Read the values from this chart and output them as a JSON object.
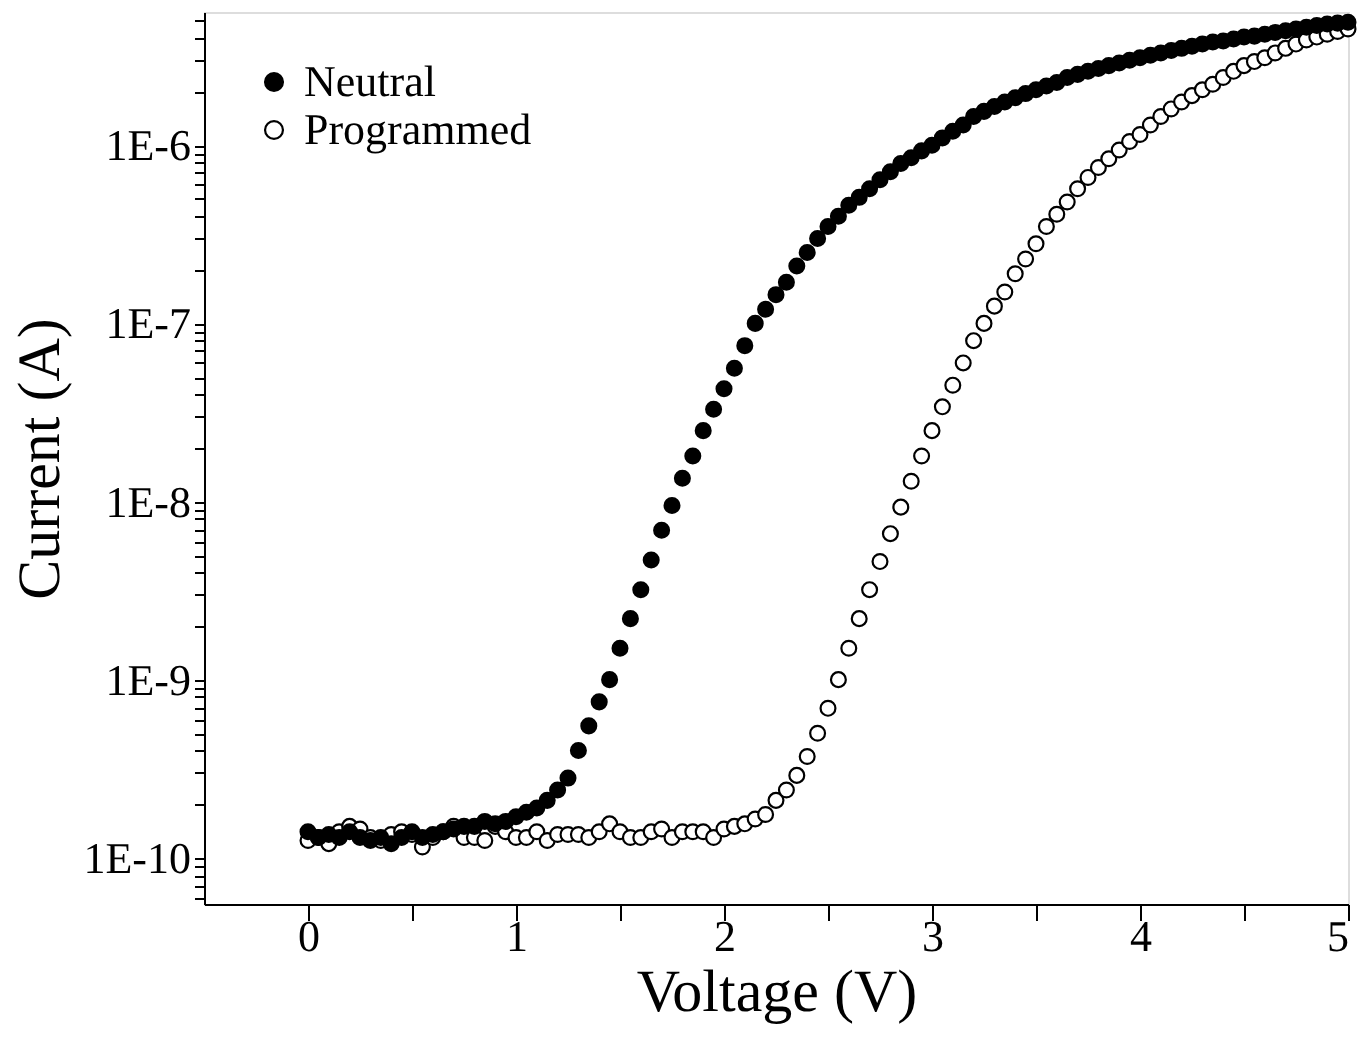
{
  "chart_data": {
    "type": "scatter",
    "xlabel": "Voltage (V)",
    "ylabel": "Current (A)",
    "log": "y",
    "grid": false,
    "legend": "top left",
    "marker": "circle",
    "xlim": [
      -0.5,
      5
    ],
    "xticks": [
      0,
      {
        "value": 0.5,
        "label": null
      },
      1,
      {
        "value": 1.5,
        "label": null
      },
      2,
      {
        "value": 2.5,
        "label": null
      },
      3,
      {
        "value": 3.5,
        "label": null
      },
      4,
      {
        "value": 4.5,
        "label": null
      },
      5
    ],
    "ylim": [
      5.5e-11,
      5.6e-06
    ],
    "yticks": [
      {
        "value": 6e-11,
        "label": null
      },
      {
        "value": 7e-11,
        "label": null
      },
      {
        "value": 8e-11,
        "label": null
      },
      {
        "value": 9e-11,
        "label": null
      },
      {
        "value": 1e-10,
        "label": "1E-10"
      },
      {
        "value": 2e-10,
        "label": null
      },
      {
        "value": 3e-10,
        "label": null
      },
      {
        "value": 4e-10,
        "label": null
      },
      {
        "value": 5e-10,
        "label": null
      },
      {
        "value": 6e-10,
        "label": null
      },
      {
        "value": 7e-10,
        "label": null
      },
      {
        "value": 8e-10,
        "label": null
      },
      {
        "value": 9e-10,
        "label": null
      },
      {
        "value": 1e-09,
        "label": "1E-9"
      },
      {
        "value": 2e-09,
        "label": null
      },
      {
        "value": 3e-09,
        "label": null
      },
      {
        "value": 4e-09,
        "label": null
      },
      {
        "value": 5e-09,
        "label": null
      },
      {
        "value": 6e-09,
        "label": null
      },
      {
        "value": 7e-09,
        "label": null
      },
      {
        "value": 8e-09,
        "label": null
      },
      {
        "value": 9e-09,
        "label": null
      },
      {
        "value": 1e-08,
        "label": "1E-8"
      },
      {
        "value": 2e-08,
        "label": null
      },
      {
        "value": 3e-08,
        "label": null
      },
      {
        "value": 4e-08,
        "label": null
      },
      {
        "value": 5e-08,
        "label": null
      },
      {
        "value": 6e-08,
        "label": null
      },
      {
        "value": 7e-08,
        "label": null
      },
      {
        "value": 8e-08,
        "label": null
      },
      {
        "value": 9e-08,
        "label": null
      },
      {
        "value": 1e-07,
        "label": "1E-7"
      },
      {
        "value": 2e-07,
        "label": null
      },
      {
        "value": 3e-07,
        "label": null
      },
      {
        "value": 4e-07,
        "label": null
      },
      {
        "value": 5e-07,
        "label": null
      },
      {
        "value": 6e-07,
        "label": null
      },
      {
        "value": 7e-07,
        "label": null
      },
      {
        "value": 8e-07,
        "label": null
      },
      {
        "value": 9e-07,
        "label": null
      },
      {
        "value": 1e-06,
        "label": "1E-6"
      },
      {
        "value": 2e-06,
        "label": null
      },
      {
        "value": 3e-06,
        "label": null
      },
      {
        "value": 4e-06,
        "label": null
      },
      {
        "value": 5e-06,
        "label": null
      }
    ],
    "x": [
      0,
      0.05,
      0.1,
      0.15,
      0.2,
      0.25,
      0.3,
      0.35,
      0.4,
      0.45,
      0.5,
      0.55,
      0.6,
      0.65,
      0.7,
      0.75,
      0.8,
      0.85,
      0.9,
      0.95,
      1,
      1.05,
      1.1,
      1.15,
      1.2,
      1.25,
      1.3,
      1.35,
      1.4,
      1.45,
      1.5,
      1.55,
      1.6,
      1.65,
      1.7,
      1.75,
      1.8,
      1.85,
      1.9,
      1.95,
      2,
      2.05,
      2.1,
      2.15,
      2.2,
      2.25,
      2.3,
      2.35,
      2.4,
      2.45,
      2.5,
      2.55,
      2.6,
      2.65,
      2.7,
      2.75,
      2.8,
      2.85,
      2.9,
      2.95,
      3,
      3.05,
      3.1,
      3.15,
      3.2,
      3.25,
      3.3,
      3.35,
      3.4,
      3.45,
      3.5,
      3.55,
      3.6,
      3.65,
      3.7,
      3.75,
      3.8,
      3.85,
      3.9,
      3.95,
      4,
      4.05,
      4.1,
      4.15,
      4.2,
      4.25,
      4.3,
      4.35,
      4.4,
      4.45,
      4.5,
      4.55,
      4.6,
      4.65,
      4.7,
      4.75,
      4.8,
      4.85,
      4.9,
      4.95,
      5
    ],
    "series": [
      {
        "name": "Neutral",
        "color": "#000000",
        "values": [
          1.4e-10,
          1.3e-10,
          1.35e-10,
          1.3e-10,
          1.4e-10,
          1.3e-10,
          1.25e-10,
          1.3e-10,
          1.2e-10,
          1.3e-10,
          1.4e-10,
          1.3e-10,
          1.35e-10,
          1.4e-10,
          1.45e-10,
          1.5e-10,
          1.5e-10,
          1.6e-10,
          1.55e-10,
          1.6e-10,
          1.7e-10,
          1.8e-10,
          1.9e-10,
          2.1e-10,
          2.4e-10,
          2.8e-10,
          4e-10,
          5.5e-10,
          7.5e-10,
          1e-09,
          1.5e-09,
          2.2e-09,
          3.2e-09,
          4.7e-09,
          6.9e-09,
          9.5e-09,
          1.35e-08,
          1.8e-08,
          2.5e-08,
          3.3e-08,
          4.3e-08,
          5.6e-08,
          7.5e-08,
          1e-07,
          1.2e-07,
          1.45e-07,
          1.7e-07,
          2.1e-07,
          2.5e-07,
          3e-07,
          3.5e-07,
          4e-07,
          4.6e-07,
          5.1e-07,
          5.7e-07,
          6.4e-07,
          7.1e-07,
          7.9e-07,
          8.5e-07,
          9.3e-07,
          1e-06,
          1.1e-06,
          1.2e-06,
          1.3e-06,
          1.45e-06,
          1.55e-06,
          1.65e-06,
          1.75e-06,
          1.85e-06,
          1.95e-06,
          2.05e-06,
          2.15e-06,
          2.25e-06,
          2.4e-06,
          2.5e-06,
          2.6e-06,
          2.7e-06,
          2.8e-06,
          2.9e-06,
          3e-06,
          3.1e-06,
          3.2e-06,
          3.3e-06,
          3.4e-06,
          3.5e-06,
          3.6e-06,
          3.7e-06,
          3.8e-06,
          3.85e-06,
          3.95e-06,
          4.05e-06,
          4.1e-06,
          4.2e-06,
          4.3e-06,
          4.4e-06,
          4.5e-06,
          4.6e-06,
          4.7e-06,
          4.8e-06,
          4.85e-06,
          4.9e-06
        ]
      },
      {
        "name": "Programmed",
        "color": "#000000",
        "values": [
          1.25e-10,
          1.3e-10,
          1.2e-10,
          1.4e-10,
          1.5e-10,
          1.45e-10,
          1.3e-10,
          1.25e-10,
          1.35e-10,
          1.4e-10,
          1.35e-10,
          1.15e-10,
          1.3e-10,
          1.4e-10,
          1.5e-10,
          1.3e-10,
          1.3e-10,
          1.25e-10,
          1.5e-10,
          1.4e-10,
          1.3e-10,
          1.3e-10,
          1.4e-10,
          1.25e-10,
          1.35e-10,
          1.35e-10,
          1.35e-10,
          1.3e-10,
          1.4e-10,
          1.55e-10,
          1.4e-10,
          1.3e-10,
          1.3e-10,
          1.4e-10,
          1.45e-10,
          1.3e-10,
          1.4e-10,
          1.4e-10,
          1.4e-10,
          1.3e-10,
          1.45e-10,
          1.5e-10,
          1.55e-10,
          1.65e-10,
          1.75e-10,
          2.1e-10,
          2.4e-10,
          2.9e-10,
          3.7e-10,
          5e-10,
          6.9e-10,
          1e-09,
          1.5e-09,
          2.2e-09,
          3.2e-09,
          4.6e-09,
          6.6e-09,
          9.3e-09,
          1.3e-08,
          1.8e-08,
          2.5e-08,
          3.4e-08,
          4.5e-08,
          6e-08,
          8e-08,
          1e-07,
          1.25e-07,
          1.5e-07,
          1.9e-07,
          2.3e-07,
          2.8e-07,
          3.5e-07,
          4.1e-07,
          4.8e-07,
          5.7e-07,
          6.6e-07,
          7.5e-07,
          8.4e-07,
          9.4e-07,
          1.05e-06,
          1.15e-06,
          1.3e-06,
          1.45e-06,
          1.6e-06,
          1.75e-06,
          1.9e-06,
          2.05e-06,
          2.2e-06,
          2.4e-06,
          2.6e-06,
          2.8e-06,
          2.95e-06,
          3.1e-06,
          3.3e-06,
          3.5e-06,
          3.7e-06,
          3.9e-06,
          4.05e-06,
          4.2e-06,
          4.35e-06,
          4.5e-06
        ]
      }
    ]
  }
}
